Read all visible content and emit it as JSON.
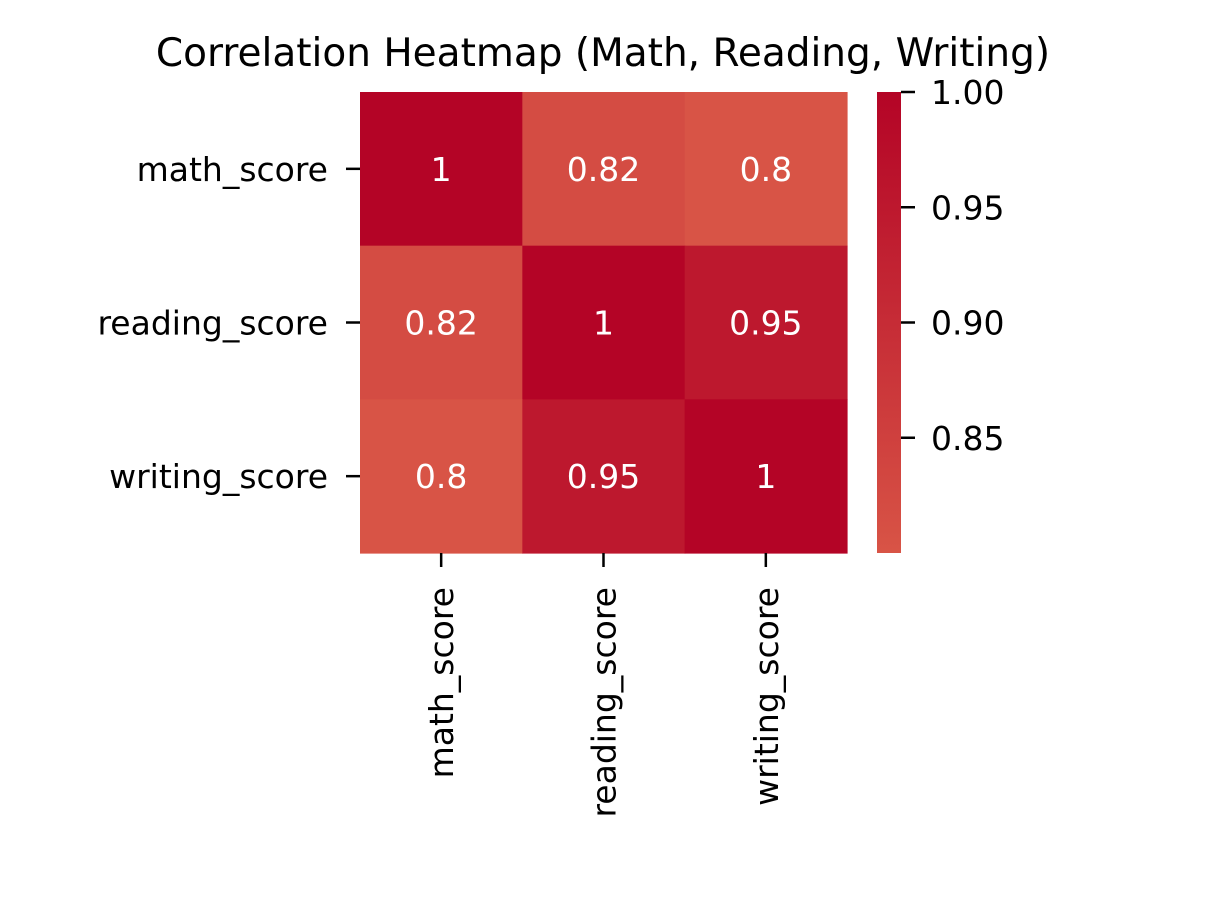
{
  "chart_data": {
    "type": "heatmap",
    "title": "Correlation Heatmap (Math, Reading, Writing)",
    "row_labels": [
      "math_score",
      "reading_score",
      "writing_score"
    ],
    "col_labels": [
      "math_score",
      "reading_score",
      "writing_score"
    ],
    "values": [
      [
        1,
        0.82,
        0.8
      ],
      [
        0.82,
        1,
        0.95
      ],
      [
        0.8,
        0.95,
        1
      ]
    ],
    "cell_labels": [
      [
        "1",
        "0.82",
        "0.8"
      ],
      [
        "0.82",
        "1",
        "0.95"
      ],
      [
        "0.8",
        "0.95",
        "1"
      ]
    ],
    "colorbar": {
      "range": [
        0.8,
        1.0
      ],
      "ticks": [
        0.85,
        0.9,
        0.95,
        1.0
      ],
      "tick_labels": [
        "0.85",
        "0.90",
        "0.95",
        "1.00"
      ],
      "color_low": "#d85446",
      "color_high": "#b40426"
    },
    "grid": false,
    "legend": "right"
  }
}
